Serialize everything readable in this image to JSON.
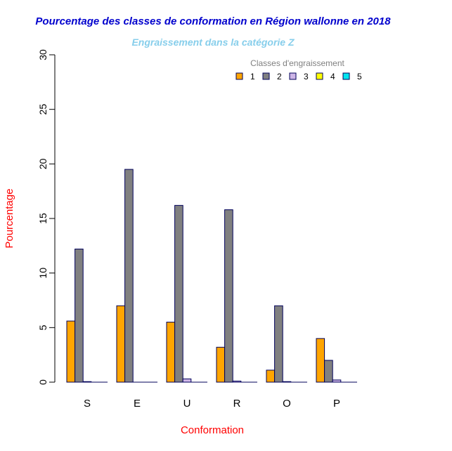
{
  "chart_data": {
    "type": "bar",
    "title": "Pourcentage des classes de conformation en Région wallonne en 2018",
    "subtitle": "Engraissement dans la catégorie Z",
    "xlabel": "Conformation",
    "ylabel": "Pourcentage",
    "ylim": [
      0,
      30
    ],
    "yticks": [
      "0",
      "5",
      "10",
      "15",
      "20",
      "25",
      "30"
    ],
    "categories": [
      "S",
      "E",
      "U",
      "R",
      "O",
      "P"
    ],
    "legend": {
      "title": "Classes d'engraissement",
      "position": "top-right"
    },
    "series": [
      {
        "name": "1",
        "color": "#FFA500",
        "values": [
          5.6,
          7.0,
          5.5,
          3.2,
          1.1,
          4.0
        ]
      },
      {
        "name": "2",
        "color": "#808080",
        "values": [
          12.2,
          19.5,
          16.2,
          15.8,
          7.0,
          2.0
        ]
      },
      {
        "name": "3",
        "color": "#CDB5E6",
        "values": [
          0.05,
          0.0,
          0.3,
          0.1,
          0.05,
          0.2
        ]
      },
      {
        "name": "4",
        "color": "#FFFF00",
        "values": [
          0,
          0,
          0,
          0,
          0,
          0
        ]
      },
      {
        "name": "5",
        "color": "#00E5EE",
        "values": [
          0,
          0,
          0,
          0,
          0,
          0
        ]
      }
    ],
    "colors": {
      "title": "#0000CD",
      "subtitle": "#87CEEB",
      "axis_label": "#FF0000",
      "bar_border": "#00005A",
      "axis": "#000000",
      "legend_title": "#808080"
    }
  }
}
